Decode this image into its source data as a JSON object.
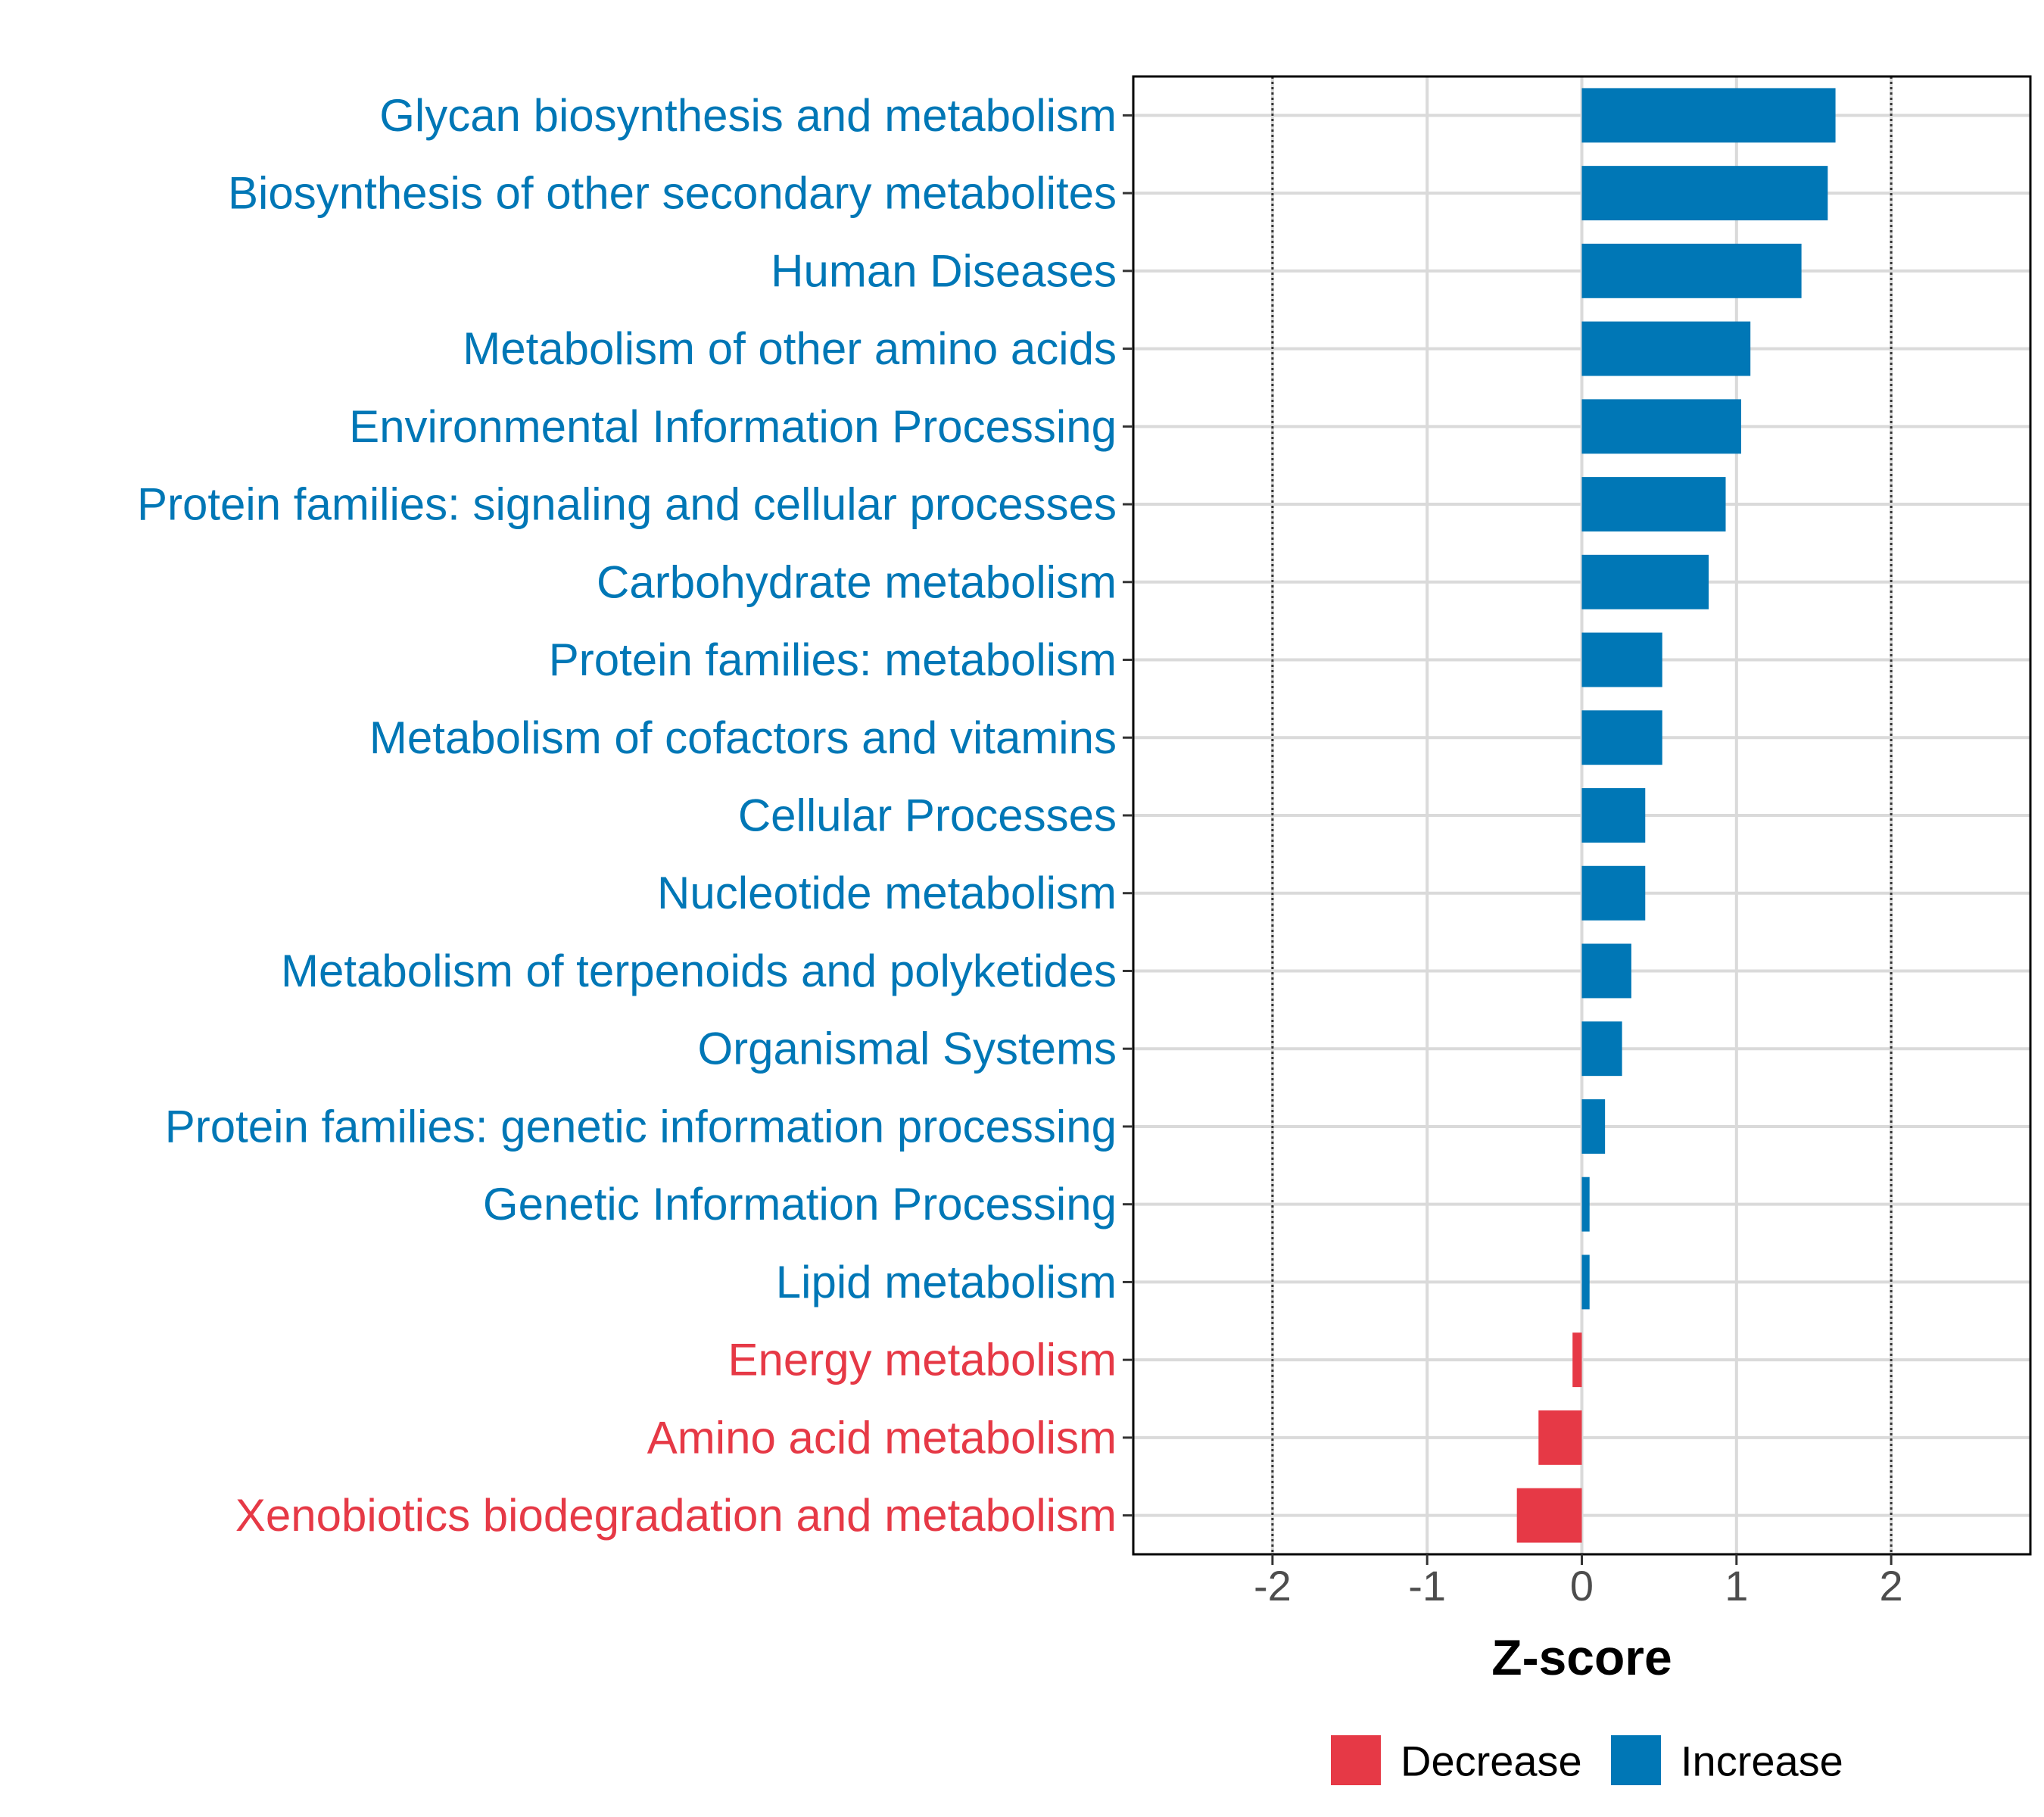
{
  "chart_data": {
    "type": "bar",
    "orientation": "horizontal",
    "xlabel": "Z-score",
    "ylabel": "",
    "xlim": [
      -2.9,
      2.9
    ],
    "xticks": [
      -2,
      -1,
      0,
      1,
      2
    ],
    "xtick_labels": [
      "-2",
      "-1",
      "0",
      "1",
      "2"
    ],
    "reference_lines": [
      -2,
      2
    ],
    "grid": true,
    "legend": {
      "position": "bottom",
      "entries": [
        {
          "name": "Decrease",
          "color": "#e63946"
        },
        {
          "name": "Increase",
          "color": "#0077b6"
        }
      ]
    },
    "colors": {
      "Decrease": "#e63946",
      "Increase": "#0077b6"
    },
    "categories": [
      "Glycan biosynthesis and metabolism",
      "Biosynthesis of other secondary metabolites",
      "Human Diseases",
      "Metabolism of other amino acids",
      "Environmental Information Processing",
      "Protein families: signaling and cellular processes",
      "Carbohydrate metabolism",
      "Protein families: metabolism",
      "Metabolism of cofactors and vitamins",
      "Cellular Processes",
      "Nucleotide metabolism",
      "Metabolism of terpenoids and polyketides",
      "Organismal Systems",
      "Protein families: genetic information processing",
      "Genetic Information Processing",
      "Lipid metabolism",
      "Energy metabolism",
      "Amino acid metabolism",
      "Xenobiotics biodegradation and metabolism"
    ],
    "values": [
      1.64,
      1.59,
      1.42,
      1.09,
      1.03,
      0.93,
      0.82,
      0.52,
      0.52,
      0.41,
      0.41,
      0.32,
      0.26,
      0.15,
      0.05,
      0.05,
      -0.06,
      -0.28,
      -0.42
    ],
    "groups": [
      "Increase",
      "Increase",
      "Increase",
      "Increase",
      "Increase",
      "Increase",
      "Increase",
      "Increase",
      "Increase",
      "Increase",
      "Increase",
      "Increase",
      "Increase",
      "Increase",
      "Increase",
      "Increase",
      "Decrease",
      "Decrease",
      "Decrease"
    ]
  }
}
